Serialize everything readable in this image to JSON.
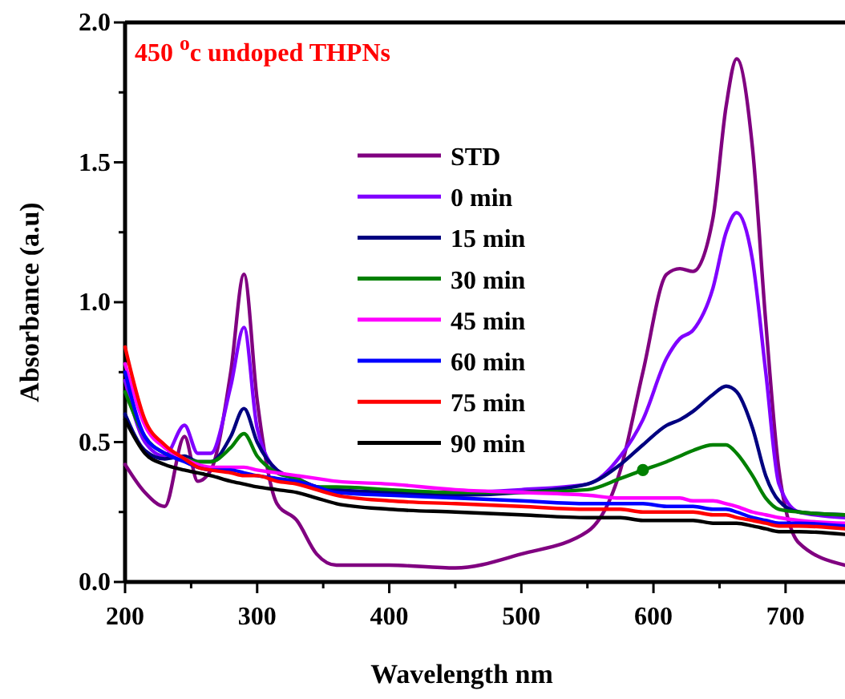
{
  "chart_data": {
    "type": "line",
    "xlabel": "Wavelength nm",
    "ylabel": "Absorbance (a.u)",
    "annotations": [
      "450 $^{o}$c undoped THPNs"
    ],
    "xlim": [
      200,
      745
    ],
    "ylim": [
      0,
      2
    ],
    "xticks": [
      200,
      {
        "value": 250,
        "label": null
      },
      300,
      {
        "value": 350,
        "label": null
      },
      400,
      {
        "value": 450,
        "label": null
      },
      500,
      {
        "value": 550,
        "label": null
      },
      600,
      {
        "value": 650,
        "label": null
      },
      700
    ],
    "yticks": [
      {
        "value": 0,
        "label": "0.0"
      },
      {
        "value": 0.25,
        "label": null
      },
      {
        "value": 0.5,
        "label": "0.5"
      },
      {
        "value": 0.75,
        "label": null
      },
      {
        "value": 1,
        "label": "1.0"
      },
      {
        "value": 1.25,
        "label": null
      },
      {
        "value": 1.5,
        "label": "1.5"
      },
      {
        "value": 1.75,
        "label": null
      },
      {
        "value": 2,
        "label": "2.0"
      }
    ],
    "legend": "top",
    "grid": false,
    "marker": "none",
    "line_style": "solid",
    "x": [
      200,
      215,
      230,
      245,
      255,
      265,
      280,
      290,
      300,
      315,
      330,
      345,
      360,
      400,
      450,
      500,
      550,
      575,
      592,
      610,
      620,
      630,
      645,
      655,
      663,
      675,
      685,
      695,
      710,
      745
    ],
    "series": [
      {
        "name": "STD",
        "color": "#800080",
        "values": [
          0.42,
          0.32,
          0.27,
          0.52,
          0.36,
          0.4,
          0.75,
          1.1,
          0.65,
          0.28,
          0.22,
          0.1,
          0.06,
          0.06,
          0.05,
          0.1,
          0.18,
          0.4,
          0.75,
          1.1,
          1.12,
          1.11,
          1.3,
          1.7,
          1.87,
          1.55,
          0.93,
          0.4,
          0.14,
          0.06
        ]
      },
      {
        "name": "0 min",
        "color": "#8000ff",
        "values": [
          0.72,
          0.5,
          0.45,
          0.56,
          0.46,
          0.46,
          0.7,
          0.91,
          0.55,
          0.4,
          0.37,
          0.34,
          0.33,
          0.32,
          0.32,
          0.33,
          0.35,
          0.45,
          0.58,
          0.8,
          0.87,
          0.9,
          1.05,
          1.25,
          1.32,
          1.15,
          0.75,
          0.35,
          0.25,
          0.23
        ]
      },
      {
        "name": "15 min",
        "color": "#000080",
        "values": [
          0.6,
          0.47,
          0.44,
          0.45,
          0.43,
          0.43,
          0.52,
          0.62,
          0.5,
          0.4,
          0.37,
          0.34,
          0.33,
          0.32,
          0.31,
          0.32,
          0.35,
          0.42,
          0.49,
          0.56,
          0.58,
          0.61,
          0.67,
          0.7,
          0.68,
          0.55,
          0.38,
          0.29,
          0.25,
          0.24
        ]
      },
      {
        "name": "30 min",
        "color": "#008000",
        "values": [
          0.68,
          0.52,
          0.46,
          0.44,
          0.43,
          0.43,
          0.48,
          0.53,
          0.45,
          0.39,
          0.37,
          0.34,
          0.34,
          0.33,
          0.32,
          0.32,
          0.33,
          0.37,
          0.4,
          0.43,
          0.45,
          0.47,
          0.49,
          0.49,
          0.46,
          0.38,
          0.3,
          0.26,
          0.25,
          0.24
        ]
      },
      {
        "name": "45 min",
        "color": "#ff00ff",
        "values": [
          0.78,
          0.56,
          0.48,
          0.44,
          0.42,
          0.41,
          0.41,
          0.41,
          0.4,
          0.39,
          0.38,
          0.37,
          0.36,
          0.35,
          0.33,
          0.32,
          0.31,
          0.3,
          0.3,
          0.3,
          0.3,
          0.29,
          0.29,
          0.28,
          0.27,
          0.25,
          0.24,
          0.23,
          0.22,
          0.21
        ]
      },
      {
        "name": "60 min",
        "color": "#0000ff",
        "values": [
          0.75,
          0.52,
          0.46,
          0.43,
          0.41,
          0.4,
          0.4,
          0.39,
          0.38,
          0.37,
          0.36,
          0.34,
          0.32,
          0.31,
          0.3,
          0.29,
          0.28,
          0.28,
          0.28,
          0.27,
          0.27,
          0.27,
          0.26,
          0.26,
          0.25,
          0.23,
          0.22,
          0.21,
          0.21,
          0.2
        ]
      },
      {
        "name": "75 min",
        "color": "#ff0000",
        "values": [
          0.84,
          0.58,
          0.49,
          0.44,
          0.41,
          0.4,
          0.39,
          0.38,
          0.38,
          0.36,
          0.35,
          0.33,
          0.31,
          0.29,
          0.28,
          0.27,
          0.26,
          0.26,
          0.25,
          0.25,
          0.25,
          0.25,
          0.24,
          0.24,
          0.23,
          0.22,
          0.21,
          0.2,
          0.2,
          0.19
        ]
      },
      {
        "name": "90 min",
        "color": "#000000",
        "values": [
          0.58,
          0.46,
          0.42,
          0.4,
          0.39,
          0.38,
          0.36,
          0.35,
          0.34,
          0.33,
          0.32,
          0.3,
          0.28,
          0.26,
          0.25,
          0.24,
          0.23,
          0.23,
          0.22,
          0.22,
          0.22,
          0.22,
          0.21,
          0.21,
          0.21,
          0.2,
          0.19,
          0.18,
          0.18,
          0.17
        ]
      },
      {
        "type": "scatter",
        "color": "#008000",
        "x": [
          592
        ],
        "values": [
          0.4
        ],
        "marker": "circle"
      }
    ]
  }
}
